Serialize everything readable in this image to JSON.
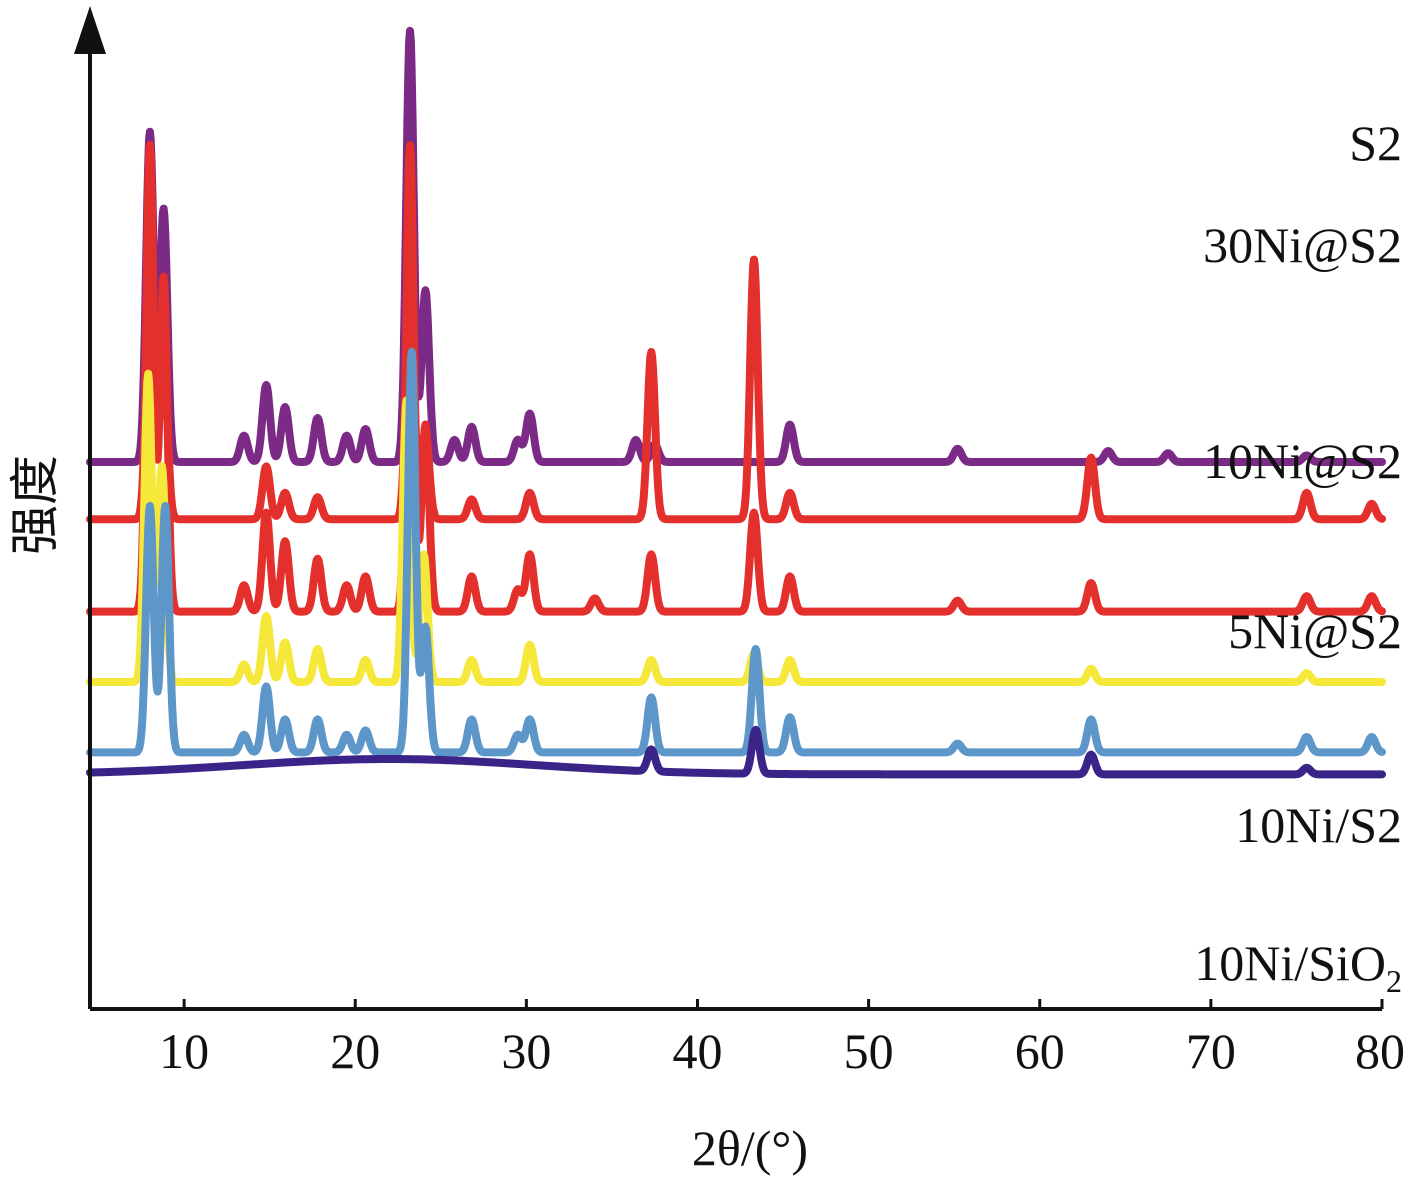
{
  "chart_data": {
    "type": "line",
    "title": "",
    "xlabel": "2θ/(°)",
    "ylabel": "强度",
    "xlim": [
      4.5,
      80
    ],
    "xticks": [
      10,
      20,
      30,
      40,
      50,
      60,
      70,
      80
    ],
    "yticks_shown": false,
    "grid": false,
    "legend": "labels at right end of each trace",
    "stacked_offset_traces": true,
    "series": [
      {
        "name": "S2",
        "label_main": "S2",
        "label_sub": "",
        "color": "#7b2a86",
        "baseline_intensity": 100,
        "peaks": [
          [
            8.0,
            150
          ],
          [
            8.8,
            115
          ],
          [
            13.5,
            12
          ],
          [
            14.8,
            35
          ],
          [
            15.9,
            25
          ],
          [
            17.8,
            20
          ],
          [
            19.5,
            12
          ],
          [
            20.6,
            15
          ],
          [
            23.2,
            196
          ],
          [
            24.1,
            78
          ],
          [
            25.8,
            10
          ],
          [
            26.8,
            16
          ],
          [
            29.5,
            10
          ],
          [
            30.2,
            22
          ],
          [
            36.4,
            10
          ],
          [
            37.5,
            8
          ],
          [
            45.4,
            17
          ],
          [
            55.2,
            6
          ],
          [
            64.0,
            5
          ],
          [
            67.5,
            4
          ],
          [
            75.6,
            3
          ]
        ],
        "hump": []
      },
      {
        "name": "30Ni@S2",
        "label_main": "30Ni@S2",
        "label_sub": "",
        "color": "#e4302c",
        "baseline_intensity": 74,
        "peaks": [
          [
            8.0,
            108
          ],
          [
            8.8,
            78
          ],
          [
            14.8,
            24
          ],
          [
            15.9,
            12
          ],
          [
            17.8,
            10
          ],
          [
            23.2,
            126
          ],
          [
            24.1,
            40
          ],
          [
            26.8,
            9
          ],
          [
            30.2,
            12
          ],
          [
            37.3,
            76
          ],
          [
            43.3,
            118
          ],
          [
            45.4,
            12
          ],
          [
            63.0,
            28
          ],
          [
            75.6,
            12
          ],
          [
            79.4,
            7
          ]
        ],
        "hump": []
      },
      {
        "name": "10Ni@S2",
        "label_main": "10Ni@S2",
        "label_sub": "",
        "color": "#e4302c",
        "baseline_intensity": 32,
        "peaks": [
          [
            8.0,
            212
          ],
          [
            8.8,
            152
          ],
          [
            13.5,
            12
          ],
          [
            14.8,
            45
          ],
          [
            15.9,
            32
          ],
          [
            17.8,
            24
          ],
          [
            19.5,
            12
          ],
          [
            20.6,
            16
          ],
          [
            23.2,
            212
          ],
          [
            24.1,
            85
          ],
          [
            26.8,
            16
          ],
          [
            29.5,
            10
          ],
          [
            30.2,
            26
          ],
          [
            34.0,
            6
          ],
          [
            37.3,
            26
          ],
          [
            43.3,
            45
          ],
          [
            45.4,
            16
          ],
          [
            55.2,
            5
          ],
          [
            63.0,
            13
          ],
          [
            75.6,
            7
          ],
          [
            79.4,
            7
          ]
        ],
        "hump": []
      },
      {
        "name": "5Ni@S2",
        "label_main": "5Ni@S2",
        "label_sub": "",
        "color": "#f5e83a",
        "baseline_intensity": 0,
        "peaks": [
          [
            7.9,
            140
          ],
          [
            8.7,
            98
          ],
          [
            13.5,
            8
          ],
          [
            14.8,
            30
          ],
          [
            15.9,
            18
          ],
          [
            17.8,
            15
          ],
          [
            20.6,
            10
          ],
          [
            23.0,
            128
          ],
          [
            24.0,
            58
          ],
          [
            26.8,
            10
          ],
          [
            30.2,
            17
          ],
          [
            37.3,
            10
          ],
          [
            43.3,
            13
          ],
          [
            45.4,
            10
          ],
          [
            63.0,
            6
          ],
          [
            75.6,
            4
          ]
        ],
        "hump": []
      },
      {
        "name": "10Ni/S2",
        "label_main": "10Ni/S2",
        "label_sub": "",
        "color": "#5d96c9",
        "baseline_intensity": -32,
        "peaks": [
          [
            8.0,
            112
          ],
          [
            8.9,
            112
          ],
          [
            13.5,
            8
          ],
          [
            14.8,
            30
          ],
          [
            15.9,
            15
          ],
          [
            17.8,
            15
          ],
          [
            19.5,
            8
          ],
          [
            20.6,
            10
          ],
          [
            23.3,
            182
          ],
          [
            24.1,
            57
          ],
          [
            26.8,
            15
          ],
          [
            29.5,
            8
          ],
          [
            30.2,
            15
          ],
          [
            37.3,
            25
          ],
          [
            43.4,
            47
          ],
          [
            45.4,
            16
          ],
          [
            55.2,
            4
          ],
          [
            63.0,
            15
          ],
          [
            75.6,
            7
          ],
          [
            79.4,
            7
          ]
        ],
        "hump": []
      },
      {
        "name": "10Ni/SiO₂",
        "label_main": "10Ni/SiO",
        "label_sub": "2",
        "color": "#3a2488",
        "baseline_intensity": -42,
        "peaks": [
          [
            37.3,
            10
          ],
          [
            43.4,
            20
          ],
          [
            63.0,
            9
          ],
          [
            75.6,
            3
          ]
        ],
        "hump": [
          22.0,
          8.5,
          7
        ]
      }
    ]
  }
}
